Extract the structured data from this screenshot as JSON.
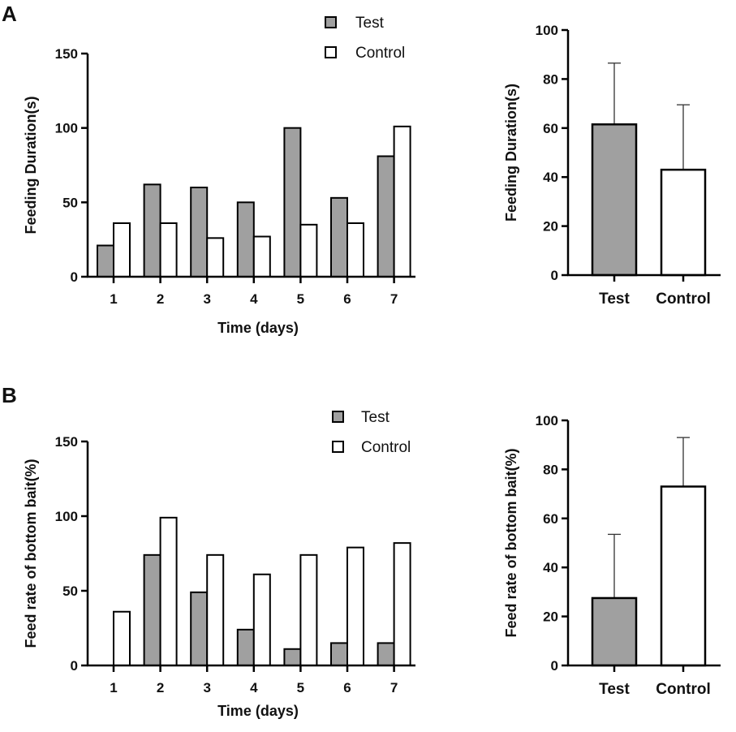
{
  "panels": {
    "a": "A",
    "b": "B"
  },
  "colors": {
    "test": "#a0a0a0",
    "control": "#ffffff",
    "stroke": "#000000"
  },
  "chart_data": [
    {
      "id": "A-left",
      "type": "bar",
      "xlabel": "Time (days)",
      "ylabel": "Feeding Duration(s)",
      "ylim": [
        0,
        150
      ],
      "yticks": [
        0,
        50,
        100,
        150
      ],
      "categories": [
        "1",
        "2",
        "3",
        "4",
        "5",
        "6",
        "7"
      ],
      "series": [
        {
          "name": "Test",
          "values": [
            21,
            62,
            60,
            50,
            100,
            53,
            81
          ]
        },
        {
          "name": "Control",
          "values": [
            36,
            36,
            26,
            27,
            35,
            36,
            101
          ]
        }
      ]
    },
    {
      "id": "A-right",
      "type": "bar",
      "ylabel": "Feeding Duration(s)",
      "ylim": [
        0,
        100
      ],
      "yticks": [
        0,
        20,
        40,
        60,
        80,
        100
      ],
      "categories": [
        "Test",
        "Control"
      ],
      "values": [
        61.5,
        43
      ],
      "errors": [
        25,
        26.5
      ]
    },
    {
      "id": "B-left",
      "type": "bar",
      "xlabel": "Time (days)",
      "ylabel": "Feed rate of bottom bait(%)",
      "ylim": [
        0,
        150
      ],
      "yticks": [
        0,
        50,
        100,
        150
      ],
      "categories": [
        "1",
        "2",
        "3",
        "4",
        "5",
        "6",
        "7"
      ],
      "series": [
        {
          "name": "Test",
          "values": [
            0,
            74,
            49,
            24,
            11,
            15,
            15
          ]
        },
        {
          "name": "Control",
          "values": [
            36,
            99,
            74,
            61,
            74,
            79,
            82
          ]
        }
      ]
    },
    {
      "id": "B-right",
      "type": "bar",
      "ylabel": "Feed rate of bottom bait(%)",
      "ylim": [
        0,
        100
      ],
      "yticks": [
        0,
        20,
        40,
        60,
        80,
        100
      ],
      "categories": [
        "Test",
        "Control"
      ],
      "values": [
        27.5,
        73
      ],
      "errors": [
        26,
        20
      ]
    }
  ]
}
